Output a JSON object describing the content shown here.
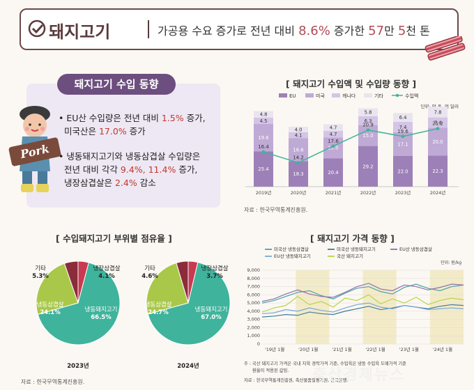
{
  "header": {
    "title": "돼지고기",
    "summary_pre": "가공용 수요 증가로 전년 대비",
    "summary_pct": "8.6%",
    "summary_mid": "증가한",
    "summary_num1": "57",
    "summary_unit1": "만",
    "summary_num2": "5",
    "summary_unit2": "천 톤"
  },
  "import_box": {
    "title": "돼지고기 수입 동향",
    "b1_a": "EU산 수입량은 전년 대비",
    "b1_v1": "1.5%",
    "b1_b": "증가,",
    "b1_c": "미국산은",
    "b1_v2": "17.0%",
    "b1_d": "증가",
    "b2_a": "냉동돼지고기와 냉동삼겹살 수입량은",
    "b2_b": "전년 대비 각각",
    "b2_v1": "9.4%,",
    "b2_v2": "11.4%",
    "b2_c": "증가,",
    "b2_d": "냉장삼겹살은",
    "b2_v3": "2.4%",
    "b2_e": "감소",
    "pork_sign": "Pork"
  },
  "colors": {
    "eu": "#9d80b8",
    "us": "#bfaad6",
    "canada": "#d4c5e6",
    "other": "#e9e4ef",
    "value_line": "#3fb39c",
    "frozen_pork": "#3fb39c",
    "frozen_belly": "#a9c84a",
    "chilled_belly": "#c73a4f",
    "other_share": "#8b2c3b",
    "header_accent": "#b14a57"
  },
  "chart_data": [
    {
      "type": "bar",
      "title": "[ 돼지고기 수입액 및 수입량 동향 ]",
      "unit": "단위: 만 톤, 억 달러",
      "categories": [
        "2019년",
        "2020년",
        "2021년",
        "2022년",
        "2023년",
        "2024년"
      ],
      "series": [
        {
          "name": "EU",
          "values": [
            25.4,
            18.3,
            20.4,
            29.2,
            22.0,
            22.3
          ]
        },
        {
          "name": "미국",
          "values": [
            19.6,
            16.6,
            15.0,
            15.0,
            17.1,
            20.0
          ]
        },
        {
          "name": "캐나다",
          "values": [
            4.5,
            4.1,
            4.7,
            6.3,
            7.4,
            7.4
          ]
        },
        {
          "name": "기타",
          "values": [
            4.8,
            4.0,
            4.7,
            5.8,
            6.4,
            7.8
          ]
        }
      ],
      "line": {
        "name": "수입액",
        "values": [
          16.4,
          14.2,
          17.6,
          20.9,
          19.6,
          21.2
        ]
      },
      "source": "자료 : 한국무역통계진흥원."
    },
    {
      "type": "pie",
      "title": "[ 수입돼지고기 부위별 점유율 ]",
      "charts": [
        {
          "label": "2023년",
          "slices": [
            {
              "name": "냉동돼지고기",
              "value": 66.5,
              "value_label": "66.5%"
            },
            {
              "name": "냉동삼겹살",
              "value": 24.1,
              "value_label": "24.1%"
            },
            {
              "name": "기타",
              "value": 5.3,
              "value_label": "5.3%"
            },
            {
              "name": "냉장삼겹살",
              "value": 4.1,
              "value_label": "4.1%"
            }
          ]
        },
        {
          "label": "2024년",
          "slices": [
            {
              "name": "냉동돼지고기",
              "value": 67.0,
              "value_label": "67.0%"
            },
            {
              "name": "냉동삼겹살",
              "value": 24.7,
              "value_label": "24.7%"
            },
            {
              "name": "기타",
              "value": 4.6,
              "value_label": "4.6%"
            },
            {
              "name": "냉장삼겹살",
              "value": 3.7,
              "value_label": "3.7%"
            }
          ]
        }
      ],
      "source": "자료 : 한국무역통계진흥원."
    },
    {
      "type": "line",
      "title": "[ 돼지고기 가격 동향 ]",
      "unit": "단위: 원/kg",
      "ylim": [
        0,
        9000
      ],
      "yticks": [
        "0",
        "1,000",
        "2,000",
        "3,000",
        "4,000",
        "5,000",
        "6,000",
        "7,000",
        "8,000",
        "9,000"
      ],
      "xticks": [
        "'19년 1월",
        "'20년 1월",
        "'21년 1월",
        "'22년 1월",
        "'23년 1월",
        "'24년 1월"
      ],
      "highlight_years": [
        "'20년 1월",
        "'22년 1월",
        "'24년 1월"
      ],
      "series": [
        {
          "name": "미국산 냉동삼겹살",
          "values": [
            5000,
            5300,
            5800,
            6300,
            6500,
            5900,
            5500,
            6200,
            6800,
            7000,
            6400,
            6100,
            6900,
            7300,
            6800,
            6500,
            7000,
            7200
          ]
        },
        {
          "name": "미국산 냉동돼지고기",
          "values": [
            3300,
            3400,
            3600,
            3500,
            3900,
            3700,
            3600,
            4000,
            4300,
            4600,
            4200,
            4400,
            4700,
            4500,
            4300,
            4600,
            4800,
            4700
          ]
        },
        {
          "name": "EU산 냉동삼겹살",
          "values": [
            5200,
            5500,
            6100,
            6600,
            6100,
            5800,
            5700,
            6300,
            7000,
            7400,
            6700,
            6500,
            7200,
            7000,
            6600,
            6900,
            7300,
            7200
          ]
        },
        {
          "name": "EU산 냉동돼지고기",
          "values": [
            3700,
            3800,
            4200,
            4000,
            4400,
            4100,
            3900,
            4400,
            4800,
            5000,
            4500,
            4300,
            4700,
            4500,
            4200,
            4300,
            4400,
            4300
          ]
        },
        {
          "name": "국산 돼지고기",
          "values": [
            3900,
            4400,
            4700,
            5800,
            4800,
            5200,
            4500,
            5600,
            5300,
            6000,
            4900,
            5500,
            5000,
            5700,
            4800,
            5300,
            5600,
            5400
          ]
        }
      ],
      "series_colors": [
        "#4aa3a3",
        "#3e7d9b",
        "#8e6fb3",
        "#7aa7d6",
        "#b9d34a"
      ],
      "footnote1": "주 : 국산 돼지고기 가격은 국내 지육 경락가격 기준, 수입육은 냉동 수입육 도매가격 기준",
      "footnote2": "환율이 적용된 값임.",
      "source": "자료 : 한국무역통계진흥원, 축산물품질평가원, 한국은행."
    }
  ],
  "watermark": "축산경제뉴스"
}
